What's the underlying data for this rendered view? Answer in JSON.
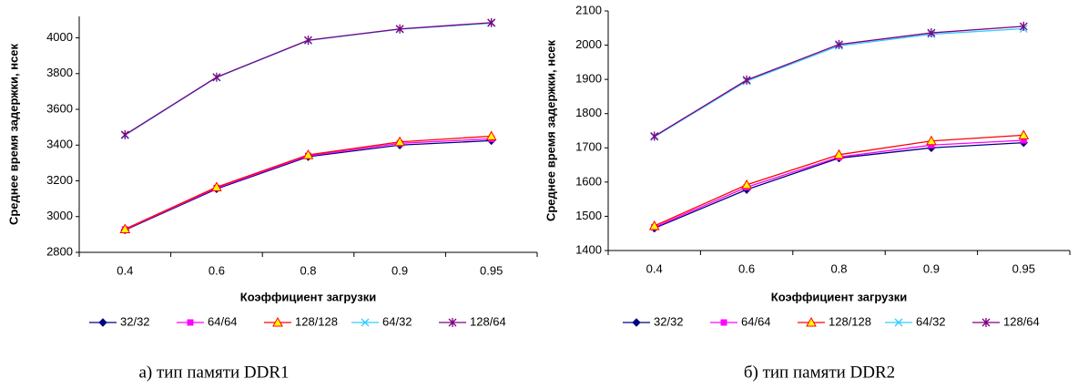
{
  "chart_data": [
    {
      "type": "line",
      "x_label": "Коэффициент загрузки",
      "y_label": "Среднее время задержки, нсек",
      "caption": "а) тип памяти DDR1",
      "categories": [
        "0.4",
        "0.6",
        "0.8",
        "0.9",
        "0.95"
      ],
      "ylim": [
        2800,
        4120
      ],
      "yticks": [
        2800,
        3000,
        3200,
        3400,
        3600,
        3800,
        4000
      ],
      "series": [
        {
          "name": "32/32",
          "color": "#000080",
          "marker": "diamond",
          "values": [
            2925,
            3155,
            3335,
            3400,
            3425
          ]
        },
        {
          "name": "64/64",
          "color": "#ff00ff",
          "marker": "square",
          "values": [
            2928,
            3160,
            3340,
            3410,
            3435
          ]
        },
        {
          "name": "128/128",
          "color": "#ff0000",
          "marker": "triangle",
          "values": [
            2930,
            3165,
            3345,
            3418,
            3450
          ]
        },
        {
          "name": "64/32",
          "color": "#33ccff",
          "marker": "x",
          "values": [
            3455,
            3778,
            3985,
            4048,
            4082
          ]
        },
        {
          "name": "128/64",
          "color": "#800080",
          "marker": "star",
          "values": [
            3458,
            3780,
            3987,
            4050,
            4085
          ]
        }
      ]
    },
    {
      "type": "line",
      "x_label": "Коэффициент загрузки",
      "y_label": "Среднее время задержки, нсек",
      "caption": "б) тип памяти DDR2",
      "categories": [
        "0.4",
        "0.6",
        "0.8",
        "0.9",
        "0.95"
      ],
      "ylim": [
        1400,
        2100
      ],
      "yticks": [
        1400,
        1500,
        1600,
        1700,
        1800,
        1900,
        2000,
        2100
      ],
      "series": [
        {
          "name": "32/32",
          "color": "#000080",
          "marker": "diamond",
          "values": [
            1465,
            1578,
            1670,
            1700,
            1715
          ]
        },
        {
          "name": "64/64",
          "color": "#ff00ff",
          "marker": "square",
          "values": [
            1468,
            1585,
            1673,
            1708,
            1722
          ]
        },
        {
          "name": "128/128",
          "color": "#ff0000",
          "marker": "triangle",
          "values": [
            1472,
            1592,
            1680,
            1720,
            1737
          ]
        },
        {
          "name": "64/32",
          "color": "#33ccff",
          "marker": "x",
          "values": [
            1732,
            1895,
            1998,
            2032,
            2048
          ]
        },
        {
          "name": "128/64",
          "color": "#800080",
          "marker": "star",
          "values": [
            1734,
            1898,
            2002,
            2036,
            2055
          ]
        }
      ]
    }
  ]
}
